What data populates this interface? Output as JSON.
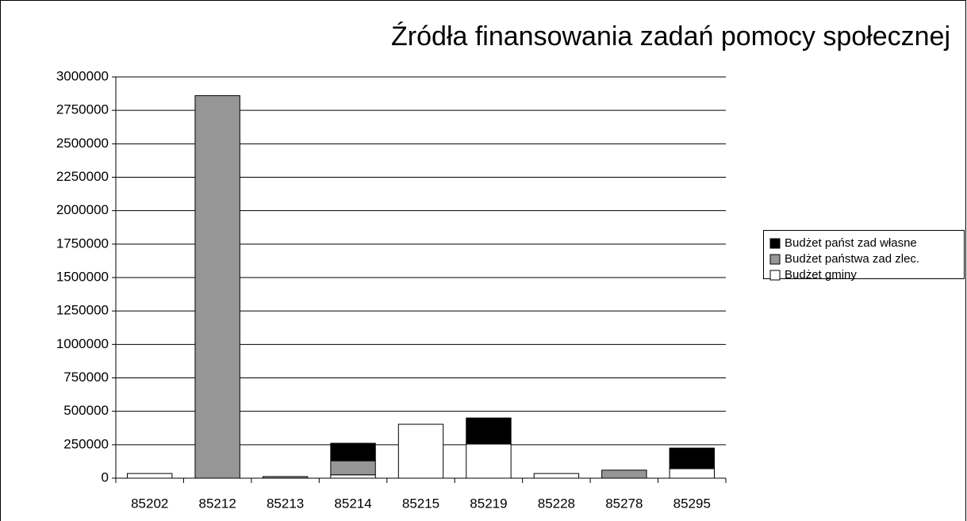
{
  "chart_data": {
    "type": "stacked_bar",
    "title": "Źródła finansowania zadań pomocy społecznej",
    "categories": [
      "85202",
      "85212",
      "85213",
      "85214",
      "85215",
      "85219",
      "85228",
      "85278",
      "85295"
    ],
    "series": [
      {
        "name": "Budżet gminy",
        "color": "#ffffff",
        "values": [
          35000,
          0,
          0,
          25000,
          403000,
          255000,
          35000,
          0,
          71000
        ]
      },
      {
        "name": "Budżet państwa zad zlec.",
        "color": "#969696",
        "values": [
          0,
          2860000,
          12000,
          105000,
          0,
          0,
          0,
          60000,
          0
        ]
      },
      {
        "name": "Budżet państ zad własne",
        "color": "#000000",
        "values": [
          0,
          0,
          0,
          131000,
          0,
          195000,
          0,
          0,
          154000
        ]
      }
    ],
    "legend_order": "reverse",
    "legend": "right",
    "ylim": [
      0,
      3000000
    ],
    "yticks": [
      0,
      250000,
      500000,
      750000,
      1000000,
      1250000,
      1500000,
      1750000,
      2000000,
      2250000,
      2500000,
      2750000,
      3000000
    ],
    "grid": true
  }
}
